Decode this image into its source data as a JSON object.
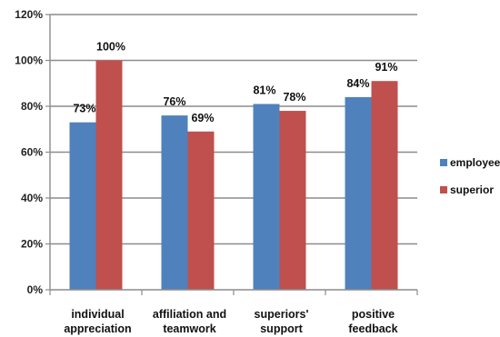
{
  "chart_data": {
    "type": "bar",
    "categories": [
      [
        "individual",
        "appreciation"
      ],
      [
        "affiliation and",
        "teamwork"
      ],
      [
        "superiors'",
        "support"
      ],
      [
        "positive",
        "feedback"
      ]
    ],
    "series": [
      {
        "name": "employee",
        "color": "#4F81BD",
        "values": [
          73,
          76,
          81,
          84
        ],
        "labels": [
          "73%",
          "76%",
          "81%",
          "84%"
        ]
      },
      {
        "name": "superior",
        "color": "#C0504D",
        "values": [
          100,
          69,
          78,
          91
        ],
        "labels": [
          "100%",
          "69%",
          "78%",
          "91%"
        ]
      }
    ],
    "ylim": [
      0,
      120
    ],
    "yticks": [
      0,
      20,
      40,
      60,
      80,
      100,
      120
    ],
    "ytick_labels": [
      "0%",
      "20%",
      "40%",
      "60%",
      "80%",
      "100%",
      "120%"
    ],
    "grid": true,
    "legend_position": "right",
    "gridline_color": "#8C8C8C"
  }
}
